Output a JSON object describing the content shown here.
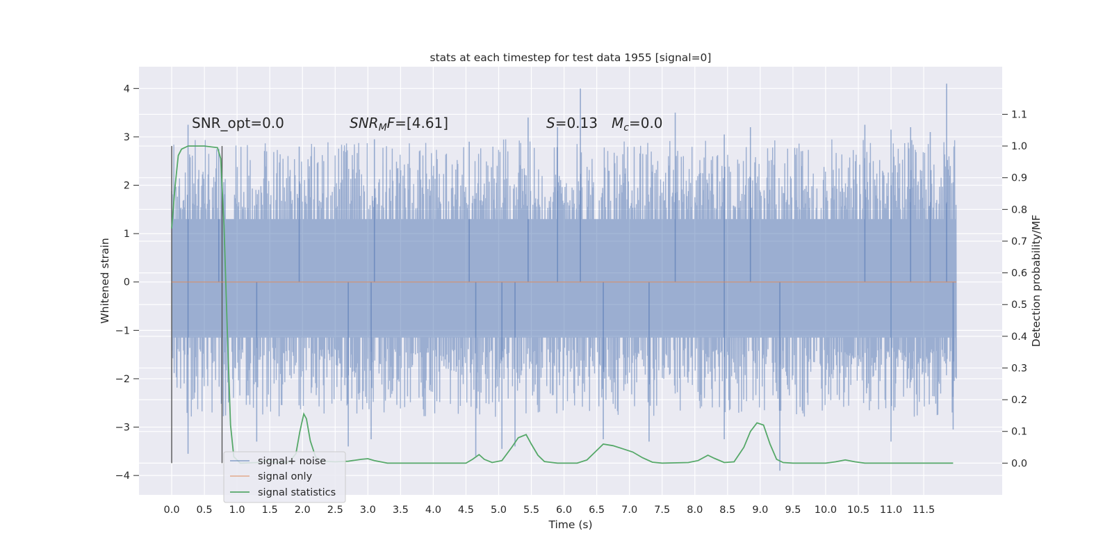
{
  "chart_data": {
    "type": "line",
    "title": "stats at each timestep for test data 1955 [signal=0]",
    "xlabel": "Time (s)",
    "ylabel": "Whitened strain",
    "y2label": "Detection probability/MF",
    "xlim": [
      -0.5,
      12.7
    ],
    "ylim": [
      -4.4,
      4.45
    ],
    "y2lim": [
      -0.1,
      1.25
    ],
    "xticks": [
      "0.0",
      "0.5",
      "1.0",
      "1.5",
      "2.0",
      "2.5",
      "3.0",
      "3.5",
      "4.0",
      "4.5",
      "5.0",
      "5.5",
      "6.0",
      "6.5",
      "7.0",
      "7.5",
      "8.0",
      "8.5",
      "9.0",
      "9.5",
      "10.0",
      "10.5",
      "11.0",
      "11.5"
    ],
    "yticks": [
      "4",
      "3",
      "2",
      "1",
      "0",
      "−1",
      "−2",
      "−3",
      "−4"
    ],
    "y2ticks": [
      "1.1",
      "1.0",
      "0.9",
      "0.8",
      "0.7",
      "0.6",
      "0.5",
      "0.4",
      "0.3",
      "0.2",
      "0.1",
      "0.0"
    ],
    "grid": true,
    "legend_position": "lower-left",
    "annotations": {
      "snr_opt": "SNR_opt=0.0",
      "snr_mf_symbol": "SNR",
      "snr_mf_sub": "M",
      "snr_mf_rest": "F",
      "snr_mf_value": "=[4.61]",
      "s_symbol": "S",
      "s_value": "=0.13",
      "mc_symbol": "M",
      "mc_sub": "c",
      "mc_value": "=0.0"
    },
    "vlines": [
      0.0,
      0.77
    ],
    "series": [
      {
        "name": "signal+ noise",
        "color": "#4c72b0",
        "axis": "left",
        "kind": "noise",
        "x_range": [
          0.0,
          12.0
        ],
        "core_envelope": [
          -1.2,
          1.35
        ],
        "extreme_peaks": [
          [
            0.25,
            3.25
          ],
          [
            0.72,
            2.75
          ],
          [
            1.95,
            2.8
          ],
          [
            3.1,
            2.95
          ],
          [
            4.55,
            2.9
          ],
          [
            5.45,
            3.4
          ],
          [
            5.9,
            3.2
          ],
          [
            6.25,
            4.0
          ],
          [
            7.7,
            3.5
          ],
          [
            8.45,
            3.05
          ],
          [
            8.85,
            3.2
          ],
          [
            10.6,
            3.25
          ],
          [
            11.0,
            3.15
          ],
          [
            11.3,
            3.2
          ],
          [
            11.6,
            3.1
          ],
          [
            11.85,
            4.1
          ]
        ],
        "extreme_troughs": [
          [
            0.25,
            -3.55
          ],
          [
            1.3,
            -3.3
          ],
          [
            2.7,
            -3.4
          ],
          [
            3.05,
            -3.25
          ],
          [
            4.65,
            -3.6
          ],
          [
            5.05,
            -3.45
          ],
          [
            5.25,
            -3.4
          ],
          [
            6.6,
            -3.25
          ],
          [
            7.3,
            -3.3
          ],
          [
            8.45,
            -3.25
          ],
          [
            9.3,
            -3.9
          ],
          [
            11.0,
            -3.3
          ],
          [
            11.95,
            -3.05
          ]
        ]
      },
      {
        "name": "signal only",
        "color": "#dd8452",
        "axis": "left",
        "kind": "flat",
        "value": 0.0,
        "x_range": [
          0.0,
          12.0
        ]
      },
      {
        "name": "signal statistics",
        "color": "#55a868",
        "axis": "right",
        "kind": "line",
        "points": [
          [
            0.0,
            0.74
          ],
          [
            0.05,
            0.87
          ],
          [
            0.1,
            0.97
          ],
          [
            0.15,
            0.99
          ],
          [
            0.25,
            1.0
          ],
          [
            0.5,
            1.0
          ],
          [
            0.7,
            0.995
          ],
          [
            0.75,
            0.96
          ],
          [
            0.8,
            0.75
          ],
          [
            0.85,
            0.42
          ],
          [
            0.9,
            0.12
          ],
          [
            0.95,
            0.02
          ],
          [
            1.05,
            0.0
          ],
          [
            1.3,
            0.002
          ],
          [
            1.45,
            0.008
          ],
          [
            1.6,
            0.002
          ],
          [
            1.8,
            0.004
          ],
          [
            1.9,
            0.03
          ],
          [
            1.96,
            0.1
          ],
          [
            2.02,
            0.155
          ],
          [
            2.06,
            0.14
          ],
          [
            2.12,
            0.07
          ],
          [
            2.2,
            0.02
          ],
          [
            2.3,
            0.006
          ],
          [
            2.5,
            0.004
          ],
          [
            2.7,
            0.006
          ],
          [
            2.9,
            0.012
          ],
          [
            3.0,
            0.014
          ],
          [
            3.1,
            0.008
          ],
          [
            3.3,
            0.0
          ],
          [
            4.5,
            0.0
          ],
          [
            4.6,
            0.012
          ],
          [
            4.7,
            0.027
          ],
          [
            4.78,
            0.012
          ],
          [
            4.9,
            0.002
          ],
          [
            5.05,
            0.008
          ],
          [
            5.2,
            0.05
          ],
          [
            5.3,
            0.08
          ],
          [
            5.42,
            0.09
          ],
          [
            5.5,
            0.06
          ],
          [
            5.6,
            0.025
          ],
          [
            5.7,
            0.005
          ],
          [
            5.9,
            0.0
          ],
          [
            6.2,
            0.0
          ],
          [
            6.35,
            0.01
          ],
          [
            6.5,
            0.04
          ],
          [
            6.6,
            0.06
          ],
          [
            6.75,
            0.055
          ],
          [
            6.9,
            0.045
          ],
          [
            7.05,
            0.035
          ],
          [
            7.2,
            0.017
          ],
          [
            7.35,
            0.003
          ],
          [
            7.5,
            0.0
          ],
          [
            7.9,
            0.002
          ],
          [
            8.05,
            0.008
          ],
          [
            8.2,
            0.025
          ],
          [
            8.3,
            0.015
          ],
          [
            8.45,
            0.002
          ],
          [
            8.6,
            0.004
          ],
          [
            8.75,
            0.05
          ],
          [
            8.85,
            0.1
          ],
          [
            8.95,
            0.127
          ],
          [
            9.05,
            0.12
          ],
          [
            9.15,
            0.06
          ],
          [
            9.25,
            0.012
          ],
          [
            9.35,
            0.002
          ],
          [
            9.5,
            0.0
          ],
          [
            10.0,
            0.0
          ],
          [
            10.15,
            0.004
          ],
          [
            10.3,
            0.01
          ],
          [
            10.45,
            0.004
          ],
          [
            10.6,
            0.0
          ],
          [
            11.0,
            0.0
          ],
          [
            11.95,
            0.0
          ]
        ]
      }
    ]
  }
}
